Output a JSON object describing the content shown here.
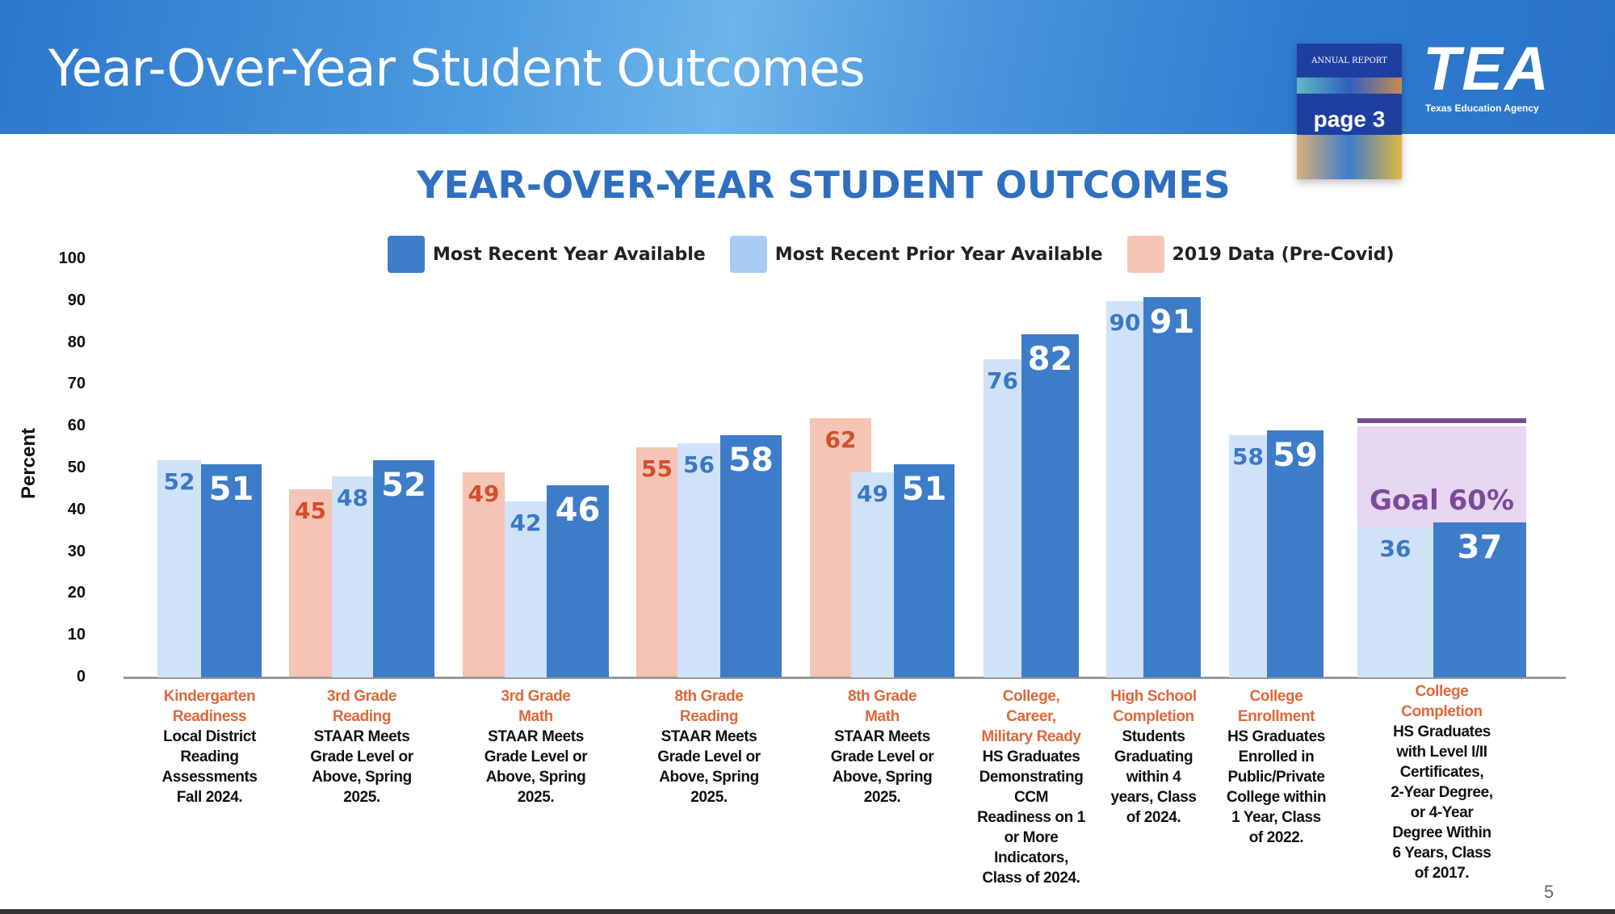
{
  "header": {
    "title": "Year-Over-Year Student Outcomes"
  },
  "annual_report": {
    "title": "ANNUAL REPORT",
    "page_label": "page 3"
  },
  "logo": {
    "text": "TEA",
    "subtitle": "Texas Education Agency"
  },
  "page_number": "5",
  "colors": {
    "recent": "#3d7cc9",
    "prior": "#cfe2f8",
    "y2019": "#f5c4b5",
    "goal": "#e6d6ef",
    "goal_line": "#7a4a9a",
    "category": "#e0673a"
  },
  "chart_data": {
    "type": "bar",
    "title": "YEAR-OVER-YEAR STUDENT OUTCOMES",
    "ylabel": "Percent",
    "xlabel": "",
    "ylim": [
      0,
      100
    ],
    "yticks": [
      "0",
      "10",
      "20",
      "30",
      "40",
      "50",
      "60",
      "70",
      "80",
      "90",
      "100"
    ],
    "legend": [
      "Most Recent Year Available",
      "Most Recent Prior Year Available",
      "2019 Data (Pre-Covid)"
    ],
    "legend_position": "top",
    "grid": false,
    "categories": [
      {
        "label": "Kindergarten\nReadiness",
        "desc": "Local District\nReading\nAssessments\nFall 2024."
      },
      {
        "label": "3rd Grade\nReading",
        "desc": "STAAR Meets\nGrade Level or\nAbove, Spring\n2025."
      },
      {
        "label": "3rd Grade\nMath",
        "desc": "STAAR Meets\nGrade Level or\nAbove, Spring\n2025."
      },
      {
        "label": "8th Grade\nReading",
        "desc": "STAAR Meets\nGrade Level or\nAbove, Spring\n2025."
      },
      {
        "label": "8th Grade\nMath",
        "desc": "STAAR Meets\nGrade Level or\nAbove, Spring\n2025."
      },
      {
        "label": "College,\nCareer,\nMilitary Ready",
        "desc": "HS Graduates\nDemonstrating\nCCM\nReadiness on 1\nor More\nIndicators,\nClass of 2024."
      },
      {
        "label": "High School\nCompletion",
        "desc": "Students\nGraduating\nwithin 4\nyears, Class\nof 2024."
      },
      {
        "label": "College\nEnrollment",
        "desc": "HS Graduates\nEnrolled in\nPublic/Private\nCollege within\n1 Year, Class\nof 2022."
      },
      {
        "label": "College\nCompletion",
        "desc": "HS Graduates\nwith Level I/II\nCertificates,\n2-Year Degree,\nor 4-Year\nDegree Within\n6 Years, Class\nof 2017."
      }
    ],
    "series": [
      {
        "name": "2019 Data (Pre-Covid)",
        "values": [
          null,
          45,
          49,
          55,
          62,
          null,
          null,
          null,
          null
        ]
      },
      {
        "name": "Most Recent Prior Year Available",
        "values": [
          52,
          48,
          42,
          56,
          49,
          76,
          90,
          58,
          36
        ]
      },
      {
        "name": "Most Recent Year Available",
        "values": [
          51,
          52,
          46,
          58,
          51,
          82,
          91,
          59,
          37
        ]
      }
    ],
    "annotations": [
      {
        "category": "College\nCompletion",
        "text": "Goal 60%",
        "value": 60
      }
    ]
  }
}
